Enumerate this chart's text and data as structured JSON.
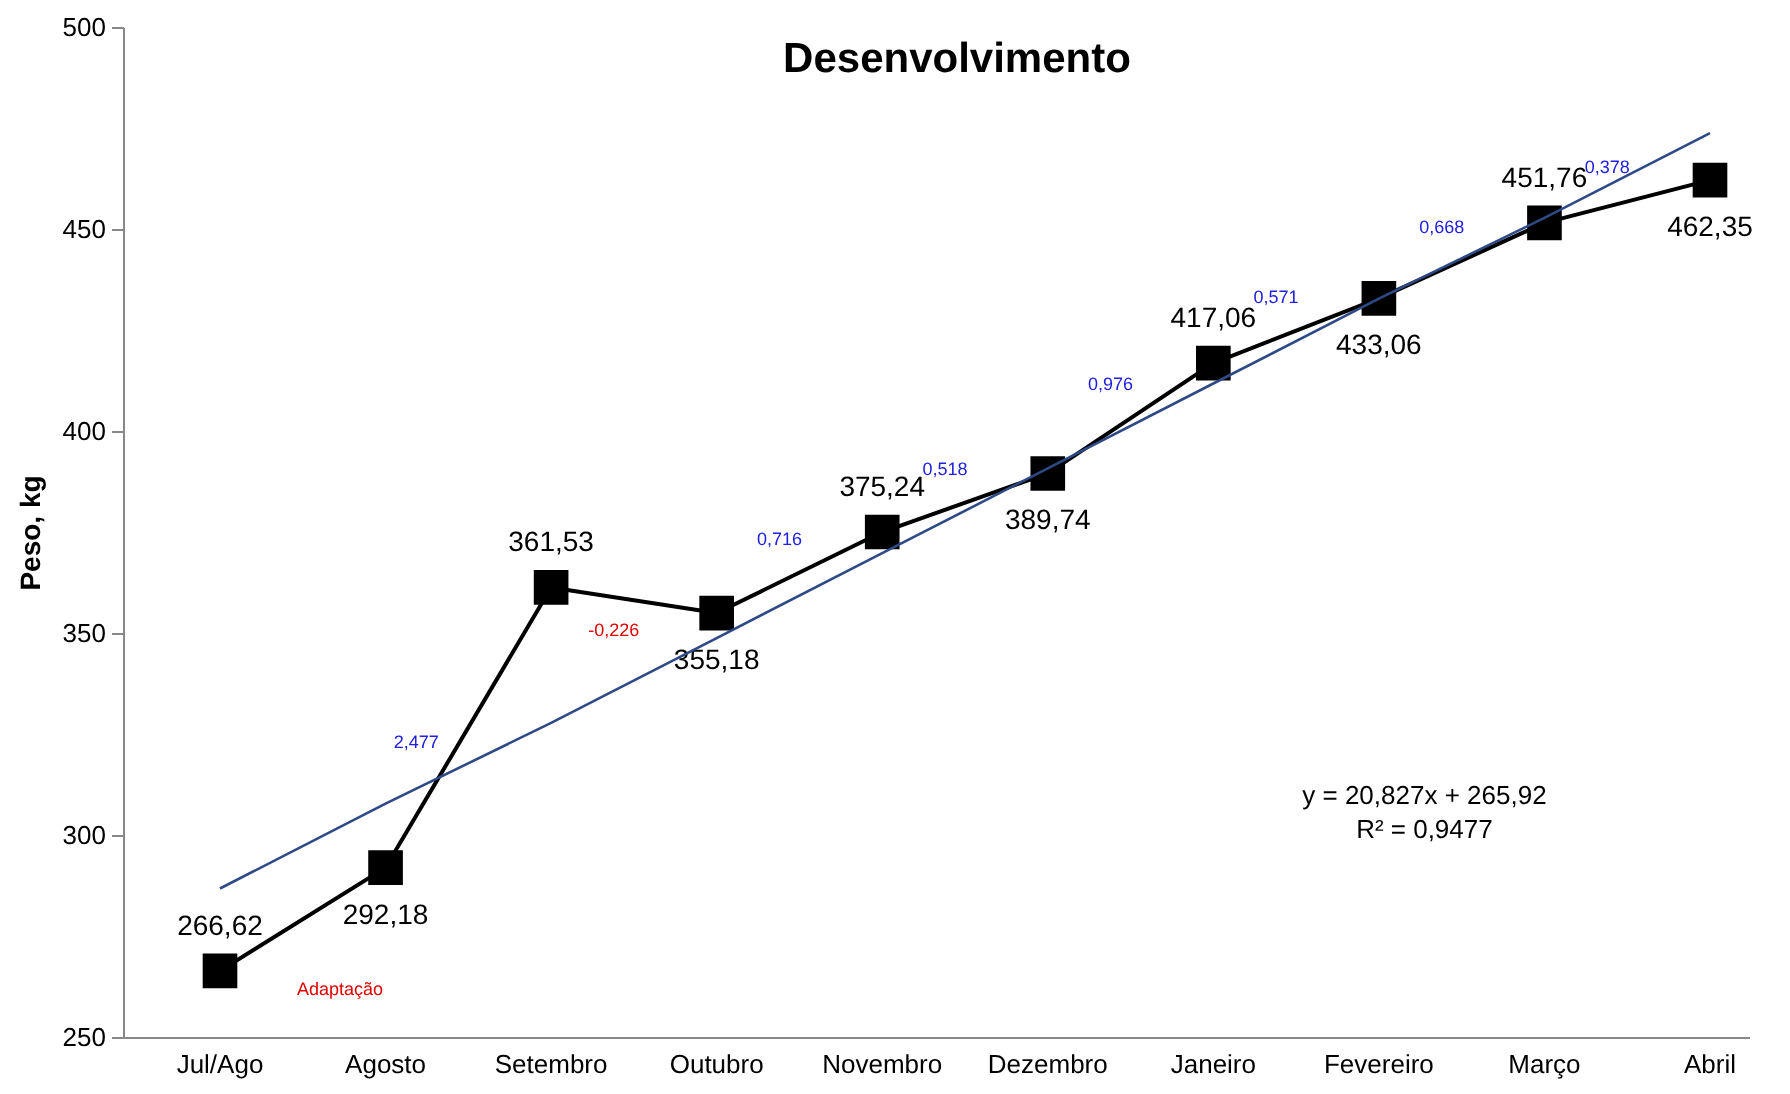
{
  "chart_data": {
    "type": "line",
    "title": "Desenvolvimento",
    "ylabel": "Peso, kg",
    "categories": [
      "Jul/Ago",
      "Agosto",
      "Setembro",
      "Outubro",
      "Novembro",
      "Dezembro",
      "Janeiro",
      "Fevereiro",
      "Março",
      "Abril"
    ],
    "series": [
      {
        "type": "line",
        "color": "#000000",
        "marker": "square",
        "values": [
          266.62,
          292.18,
          361.53,
          355.18,
          375.24,
          389.74,
          417.06,
          433.06,
          451.76,
          462.35
        ],
        "value_labels": [
          "266,62",
          "292,18",
          "361,53",
          "355,18",
          "375,24",
          "389,74",
          "417,06",
          "433,06",
          "451,76",
          "462,35"
        ]
      },
      {
        "type": "line",
        "color": "#2e4a86",
        "marker": "none",
        "values": [
          287,
          308,
          328,
          349,
          370,
          391,
          412,
          433,
          453,
          474
        ]
      }
    ],
    "ylim": [
      250,
      500
    ],
    "yticks": [
      250,
      300,
      350,
      400,
      450,
      500
    ],
    "annotations": [
      "2,477",
      "-0,226",
      "0,716",
      "0,518",
      "0,976",
      "0,571",
      "0,668",
      "0,378",
      "y = 20,827x + 265,92",
      "R² = 0,9477",
      "Adaptação"
    ]
  }
}
